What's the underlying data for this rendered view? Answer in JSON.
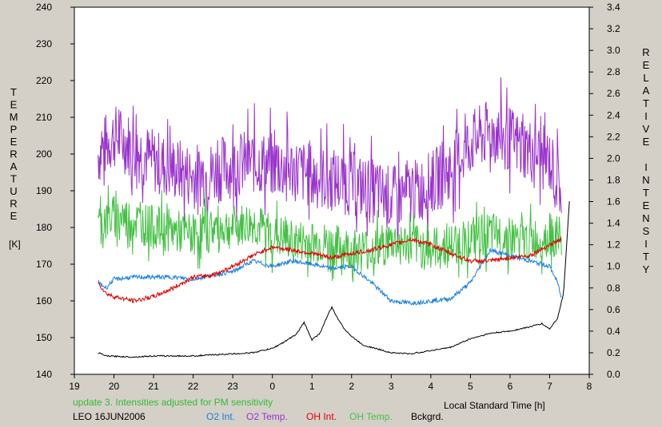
{
  "chart_data": {
    "type": "line",
    "xlabel": "Local Standard Time [h]",
    "x_ticks": [
      "19",
      "20",
      "21",
      "22",
      "23",
      "0",
      "1",
      "2",
      "3",
      "4",
      "5",
      "6",
      "7",
      "8"
    ],
    "xlim": [
      19,
      32
    ],
    "ylabel_left": [
      "T",
      "E",
      "M",
      "P",
      "E",
      "R",
      "A",
      "T",
      "U",
      "R",
      "E"
    ],
    "ylabel_left_unit": "[K]",
    "ylim_left": [
      140,
      240
    ],
    "y_ticks_left": [
      "140",
      "150",
      "160",
      "170",
      "180",
      "190",
      "200",
      "210",
      "220",
      "230",
      "240"
    ],
    "ylabel_right_1": [
      "R",
      "E",
      "L",
      "A",
      "T",
      "I",
      "V",
      "E"
    ],
    "ylabel_right_2": [
      "I",
      "N",
      "T",
      "E",
      "N",
      "S",
      "I",
      "T",
      "Y"
    ],
    "ylim_right": [
      0.0,
      3.4
    ],
    "y_ticks_right": [
      "0.0",
      "0.2",
      "0.4",
      "0.6",
      "0.8",
      "1.0",
      "1.2",
      "1.4",
      "1.6",
      "1.8",
      "2.0",
      "2.2",
      "2.4",
      "2.6",
      "2.8",
      "3.0",
      "3.2",
      "3.4"
    ],
    "grid": false,
    "note": "update 3. Intensities adjusted for PM sensitivity",
    "station_date": "LEO 16JUN2006",
    "series": [
      {
        "name": "O2 Int.",
        "color": "#1a7fe0",
        "axis": "right",
        "x": [
          19.6,
          19.8,
          20,
          20.5,
          21,
          21.5,
          22,
          22.5,
          23,
          23.5,
          24,
          24.5,
          25,
          25.5,
          26,
          26.5,
          27,
          27.5,
          28,
          28.5,
          29,
          29.5,
          30,
          30.5,
          31,
          31.2,
          31.3
        ],
        "values": [
          0.85,
          0.8,
          0.88,
          0.9,
          0.9,
          0.9,
          0.88,
          0.92,
          0.95,
          1.05,
          1.0,
          1.05,
          1.02,
          0.98,
          1.0,
          0.85,
          0.68,
          0.66,
          0.68,
          0.7,
          0.85,
          1.15,
          1.1,
          1.05,
          1.0,
          0.85,
          0.7
        ]
      },
      {
        "name": "O2 Temp.",
        "color": "#9933cc",
        "axis": "left",
        "x": [
          19.6,
          20,
          20.5,
          21,
          21.5,
          22,
          22.5,
          23,
          23.5,
          24,
          24.5,
          25,
          25.5,
          26,
          26.5,
          27,
          27.5,
          28,
          28.5,
          29,
          29.5,
          30,
          30.5,
          31,
          31.3
        ],
        "values": [
          200,
          205,
          202,
          198,
          196,
          194,
          195,
          197,
          198,
          197,
          196,
          194,
          193,
          192,
          190,
          188,
          189,
          192,
          196,
          203,
          206,
          204,
          201,
          198,
          190
        ]
      },
      {
        "name": "OH Int.",
        "color": "#e00000",
        "axis": "right",
        "x": [
          19.6,
          19.8,
          20,
          20.5,
          21,
          21.5,
          22,
          22.5,
          23,
          23.5,
          24,
          24.5,
          25,
          25.5,
          26,
          26.5,
          27,
          27.5,
          28,
          28.5,
          29,
          29.5,
          30,
          30.5,
          31,
          31.3
        ],
        "values": [
          0.85,
          0.75,
          0.72,
          0.68,
          0.72,
          0.8,
          0.9,
          0.92,
          1.0,
          1.1,
          1.18,
          1.15,
          1.12,
          1.08,
          1.12,
          1.15,
          1.2,
          1.25,
          1.2,
          1.12,
          1.05,
          1.05,
          1.08,
          1.1,
          1.2,
          1.25
        ]
      },
      {
        "name": "OH Temp.",
        "color": "#44c044",
        "axis": "left",
        "x": [
          19.6,
          20,
          20.5,
          21,
          21.5,
          22,
          22.5,
          23,
          23.5,
          24,
          24.5,
          25,
          25.5,
          26,
          26.5,
          27,
          27.5,
          28,
          28.5,
          29,
          29.5,
          30,
          30.5,
          31,
          31.3
        ],
        "values": [
          181,
          183,
          182,
          180,
          179,
          178,
          180,
          180,
          181,
          178,
          176,
          176,
          175,
          174,
          174,
          176,
          175,
          174,
          175,
          177,
          178,
          177,
          176,
          178,
          177
        ]
      },
      {
        "name": "Bckgrd.",
        "color": "#000000",
        "axis": "right",
        "x": [
          19.6,
          19.8,
          20.5,
          21,
          22,
          23,
          23.5,
          24,
          24.3,
          24.6,
          24.8,
          25.0,
          25.2,
          25.4,
          25.5,
          25.6,
          25.8,
          26,
          26.3,
          26.6,
          27,
          27.5,
          28,
          28.5,
          29,
          29.5,
          30,
          30.5,
          30.8,
          31,
          31.2,
          31.35,
          31.5
        ],
        "values": [
          0.2,
          0.17,
          0.16,
          0.17,
          0.17,
          0.19,
          0.2,
          0.24,
          0.3,
          0.37,
          0.48,
          0.32,
          0.38,
          0.55,
          0.62,
          0.55,
          0.43,
          0.35,
          0.27,
          0.24,
          0.2,
          0.19,
          0.22,
          0.25,
          0.33,
          0.38,
          0.4,
          0.44,
          0.47,
          0.42,
          0.52,
          0.75,
          1.6
        ]
      }
    ]
  }
}
